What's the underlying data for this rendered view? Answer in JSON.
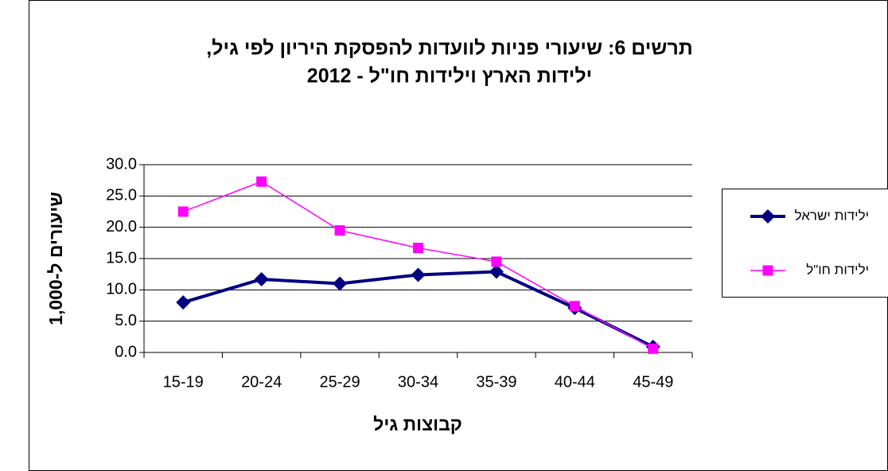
{
  "chart_data": {
    "type": "line",
    "title": [
      "תרשים 6: שיעורי פניות לוועדות להפסקת היריון לפי גיל,",
      "ילידות הארץ וילידות חו\"ל - 2012"
    ],
    "x_label": "קבוצות גיל",
    "y_label": "שיעורים ל-1,000",
    "categories": [
      "15-19",
      "20-24",
      "25-29",
      "30-34",
      "35-39",
      "40-44",
      "45-49"
    ],
    "series": [
      {
        "name": "ילידות ישראל",
        "color": "#000080",
        "marker": "diamond",
        "line_width": 4,
        "values": [
          8.0,
          11.7,
          11.0,
          12.4,
          12.9,
          7.1,
          0.9
        ]
      },
      {
        "name": "ילידות חו\"ל",
        "color": "#ff00ff",
        "marker": "square",
        "line_width": 1.5,
        "values": [
          22.5,
          27.3,
          19.5,
          16.7,
          14.5,
          7.4,
          0.6
        ]
      }
    ],
    "ylim": [
      0,
      30
    ],
    "yticks": [
      {
        "value": 0,
        "label": "0.0"
      },
      {
        "value": 5,
        "label": "5.0"
      },
      {
        "value": 10,
        "label": "10.0"
      },
      {
        "value": 15,
        "label": "15.0"
      },
      {
        "value": 20,
        "label": "20.0"
      },
      {
        "value": 25,
        "label": "25.0"
      },
      {
        "value": 30,
        "label": "30.0"
      }
    ],
    "grid": true,
    "legend": "right"
  }
}
